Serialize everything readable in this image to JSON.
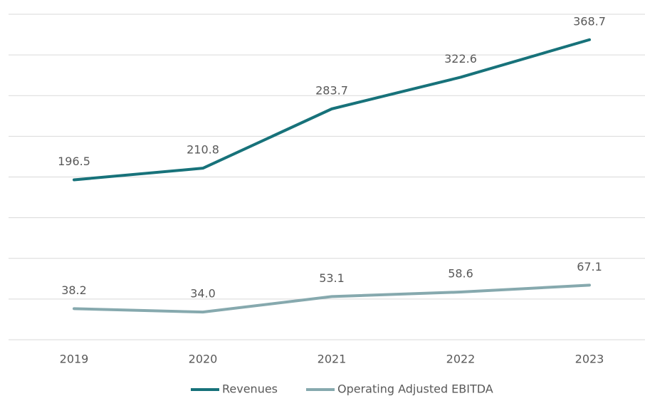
{
  "chart_data": {
    "type": "line",
    "categories": [
      "2019",
      "2020",
      "2021",
      "2022",
      "2023"
    ],
    "series": [
      {
        "name": "Revenues",
        "color": "#17727a",
        "values": [
          196.5,
          210.8,
          283.7,
          322.6,
          368.7
        ],
        "value_labels": [
          "196.5",
          "210.8",
          "283.7",
          "322.6",
          "368.7"
        ]
      },
      {
        "name": "Operating Adjusted EBITDA",
        "color": "#86a9ae",
        "values": [
          38.2,
          34.0,
          53.1,
          58.6,
          67.1
        ],
        "value_labels": [
          "38.2",
          "34.0",
          "53.1",
          "58.6",
          "67.1"
        ]
      }
    ],
    "ylim": [
      0,
      400
    ],
    "yticks": [
      0,
      50,
      100,
      150,
      200,
      250,
      300,
      350,
      400
    ],
    "grid": true
  }
}
